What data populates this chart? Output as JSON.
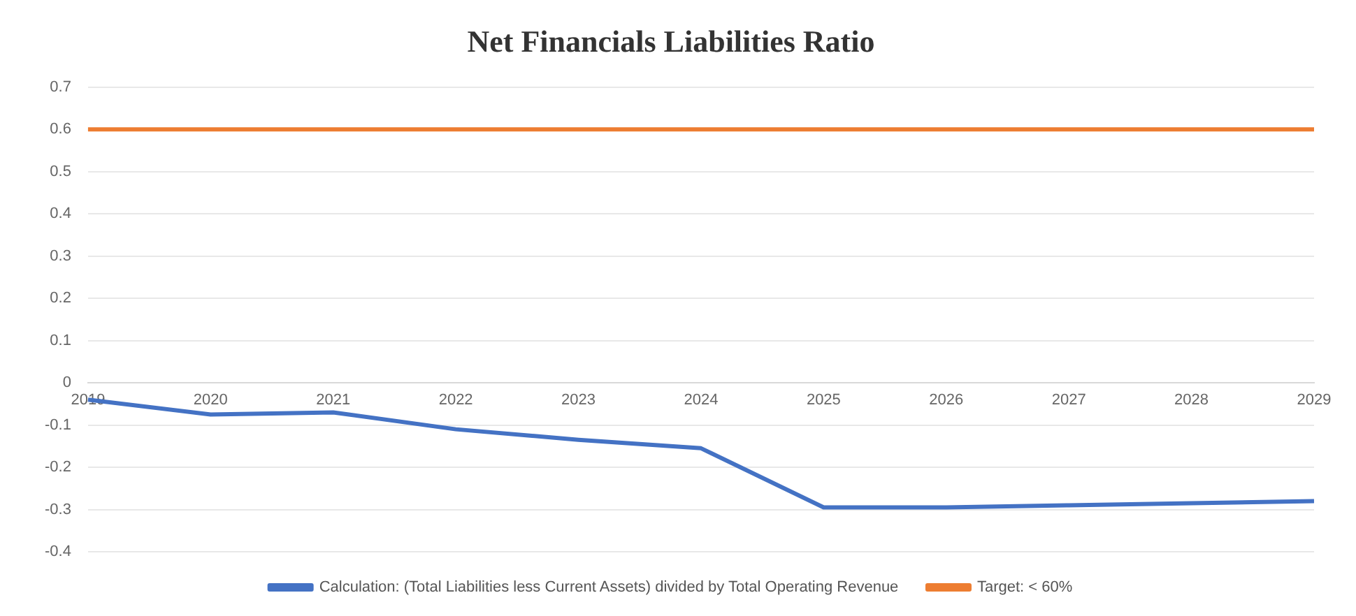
{
  "chart_data": {
    "type": "line",
    "title": "Net Financials Liabilities Ratio",
    "categories": [
      "2019",
      "2020",
      "2021",
      "2022",
      "2023",
      "2024",
      "2025",
      "2026",
      "2027",
      "2028",
      "2029"
    ],
    "series": [
      {
        "name": "Calculation: (Total Liabilities less Current Assets) divided by Total Operating Revenue",
        "color": "#4472c4",
        "values": [
          -0.04,
          -0.075,
          -0.07,
          -0.11,
          -0.135,
          -0.155,
          -0.295,
          -0.295,
          -0.29,
          -0.285,
          -0.28
        ]
      },
      {
        "name": "Target: < 60%",
        "color": "#ed7d31",
        "values": [
          0.6,
          0.6,
          0.6,
          0.6,
          0.6,
          0.6,
          0.6,
          0.6,
          0.6,
          0.6,
          0.6
        ]
      }
    ],
    "ylim": [
      -0.4,
      0.7
    ],
    "yticks": [
      -0.4,
      -0.3,
      -0.2,
      -0.1,
      0,
      0.1,
      0.2,
      0.3,
      0.4,
      0.5,
      0.6,
      0.7
    ],
    "grid": "y",
    "legend": "bottom",
    "marker": "none",
    "line_style": "solid"
  }
}
